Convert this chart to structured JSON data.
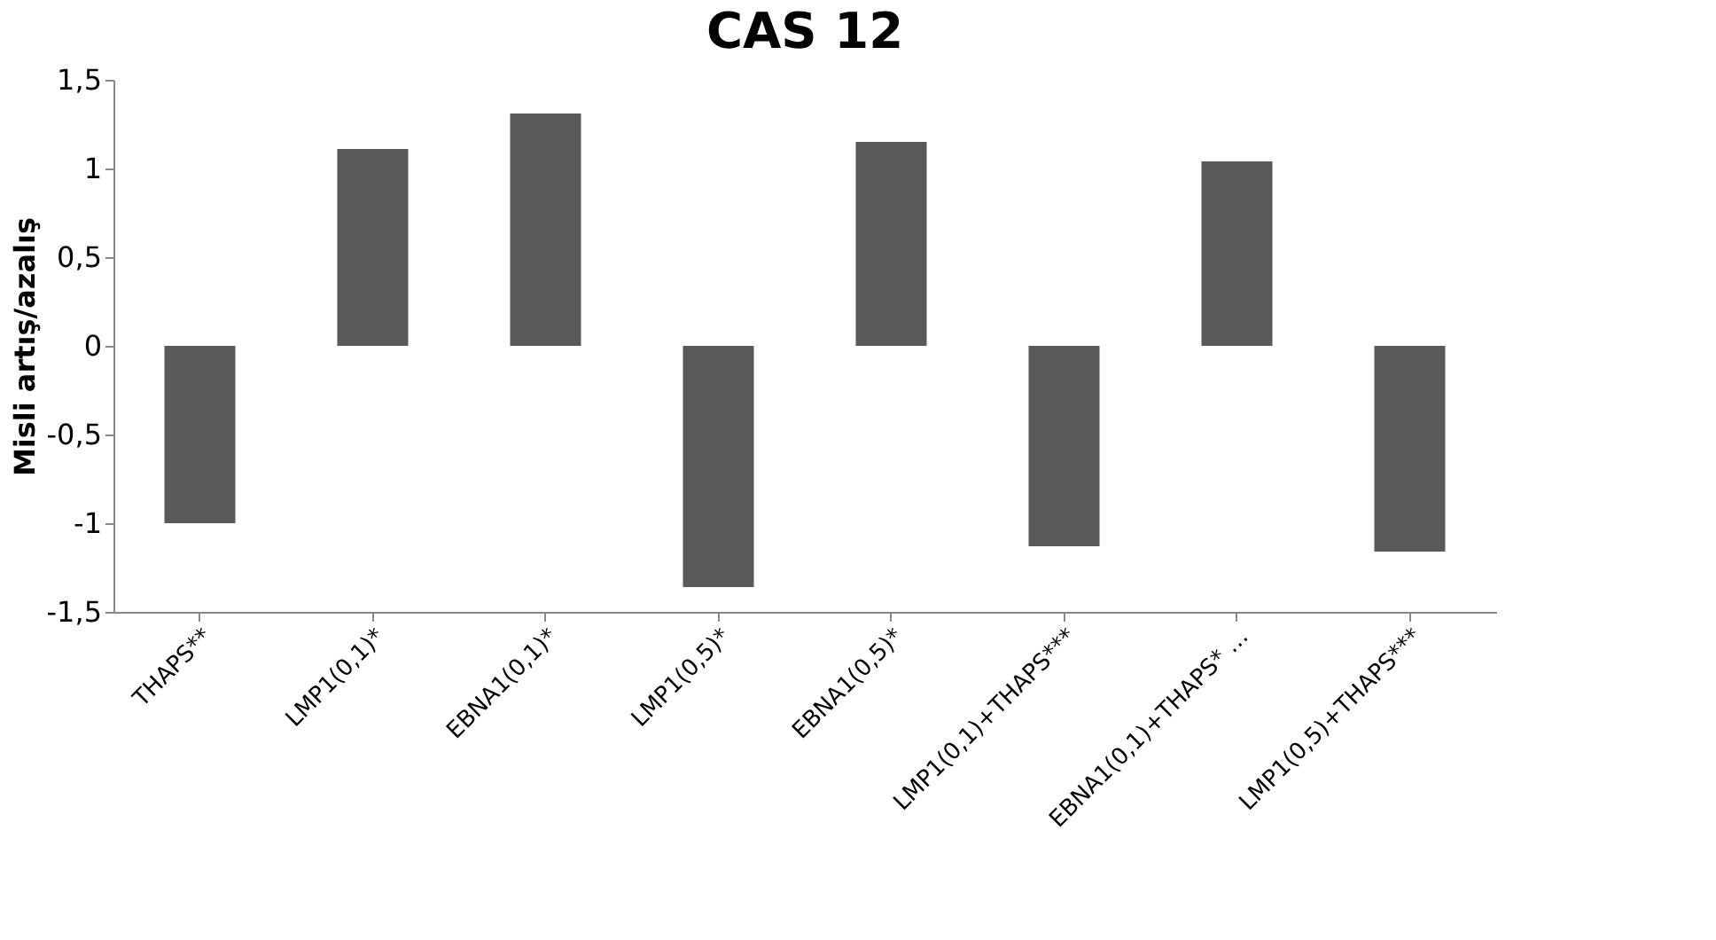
{
  "chart_data": {
    "type": "bar",
    "title": "CAS 12",
    "ylabel": "Misli artış/azalış",
    "categories": [
      "THAPS**",
      "LMP1(0,1)*",
      "EBNA1(0,1)*",
      "LMP1(0,5)*",
      "EBNA1(0,5)*",
      "LMP1(0,1)+THAPS***",
      "EBNA1(0,1)+THAPS* …",
      "LMP1(0,5)+THAPS***"
    ],
    "values": [
      -1.0,
      1.11,
      1.31,
      -1.36,
      1.15,
      -1.13,
      1.04,
      -1.16
    ],
    "color": "#595959",
    "ylim": [
      -1.5,
      1.5
    ],
    "yticks": [
      {
        "value": -1.5,
        "label": "-1,5"
      },
      {
        "value": -1,
        "label": "-1"
      },
      {
        "value": -0.5,
        "label": "-0,5"
      },
      {
        "value": 0,
        "label": "0"
      },
      {
        "value": 0.5,
        "label": "0,5"
      },
      {
        "value": 1,
        "label": "1"
      },
      {
        "value": 1.5,
        "label": "1,5"
      }
    ],
    "grid": false
  }
}
